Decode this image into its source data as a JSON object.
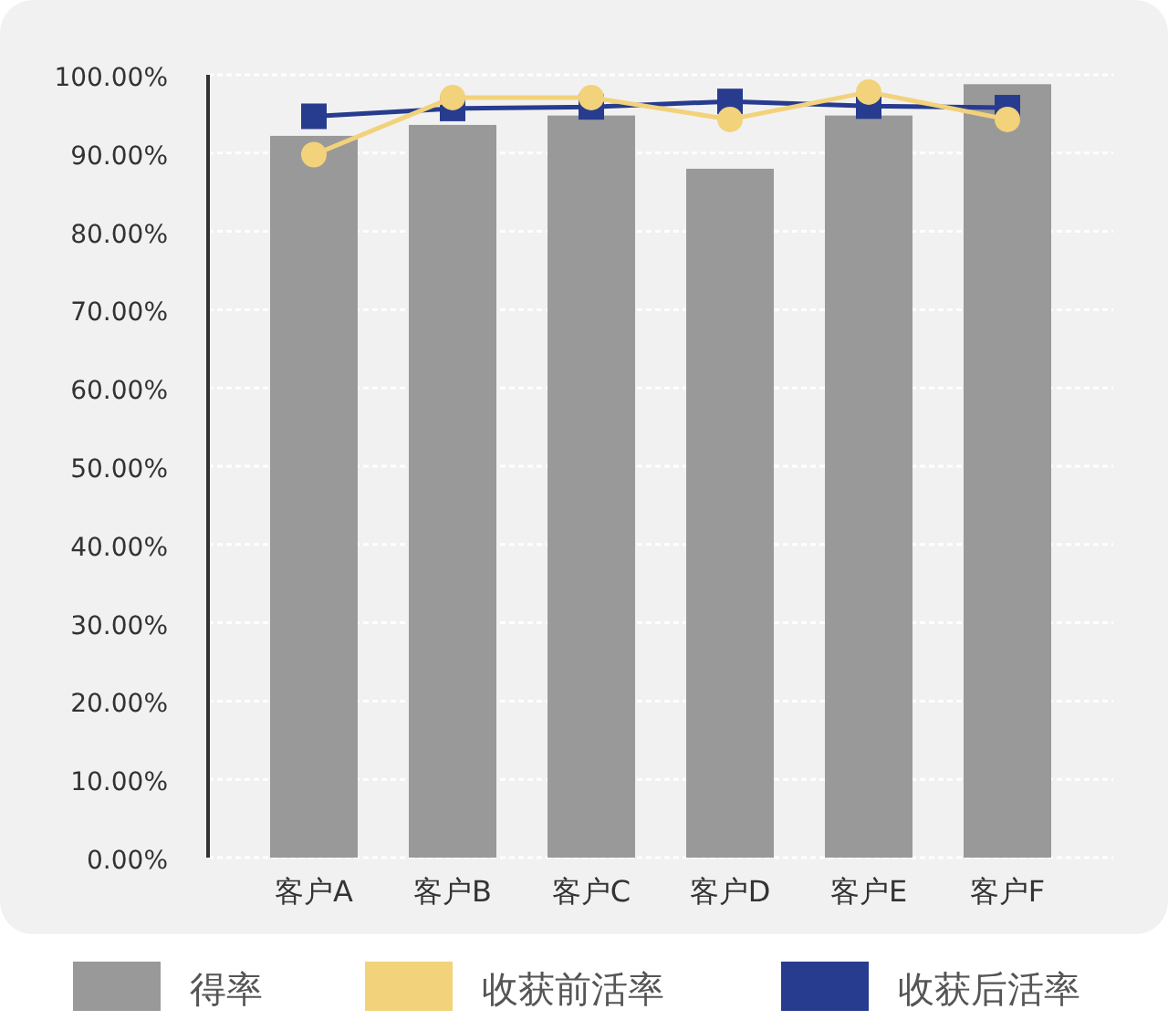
{
  "chart_data": {
    "type": "bar",
    "categories": [
      "客户A",
      "客户B",
      "客户C",
      "客户D",
      "客户E",
      "客户F"
    ],
    "series": [
      {
        "name": "得率",
        "color": "#999999",
        "values": [
          92.2,
          93.6,
          94.8,
          88.0,
          94.8,
          98.8
        ]
      },
      {
        "name": "收获前活率",
        "type": "line",
        "color": "#f2d27a",
        "marker": "circle",
        "values": [
          89.8,
          97.1,
          97.1,
          94.3,
          97.8,
          94.3
        ]
      },
      {
        "name": "收获后活率",
        "type": "line",
        "color": "#273c8e",
        "marker": "square",
        "values": [
          94.7,
          95.7,
          95.9,
          96.6,
          96.0,
          95.8
        ]
      }
    ],
    "ylim": [
      0,
      100
    ],
    "yticks": [
      {
        "value": 0,
        "label": "0.00%"
      },
      {
        "value": 10,
        "label": "10.00%"
      },
      {
        "value": 20,
        "label": "20.00%"
      },
      {
        "value": 30,
        "label": "30.00%"
      },
      {
        "value": 40,
        "label": "40.00%"
      },
      {
        "value": 50,
        "label": "50.00%"
      },
      {
        "value": 60,
        "label": "60.00%"
      },
      {
        "value": 70,
        "label": "70.00%"
      },
      {
        "value": 80,
        "label": "80.00%"
      },
      {
        "value": 90,
        "label": "90.00%"
      },
      {
        "value": 100,
        "label": "100.00%"
      }
    ],
    "grid": "y",
    "legend": "bottom"
  }
}
